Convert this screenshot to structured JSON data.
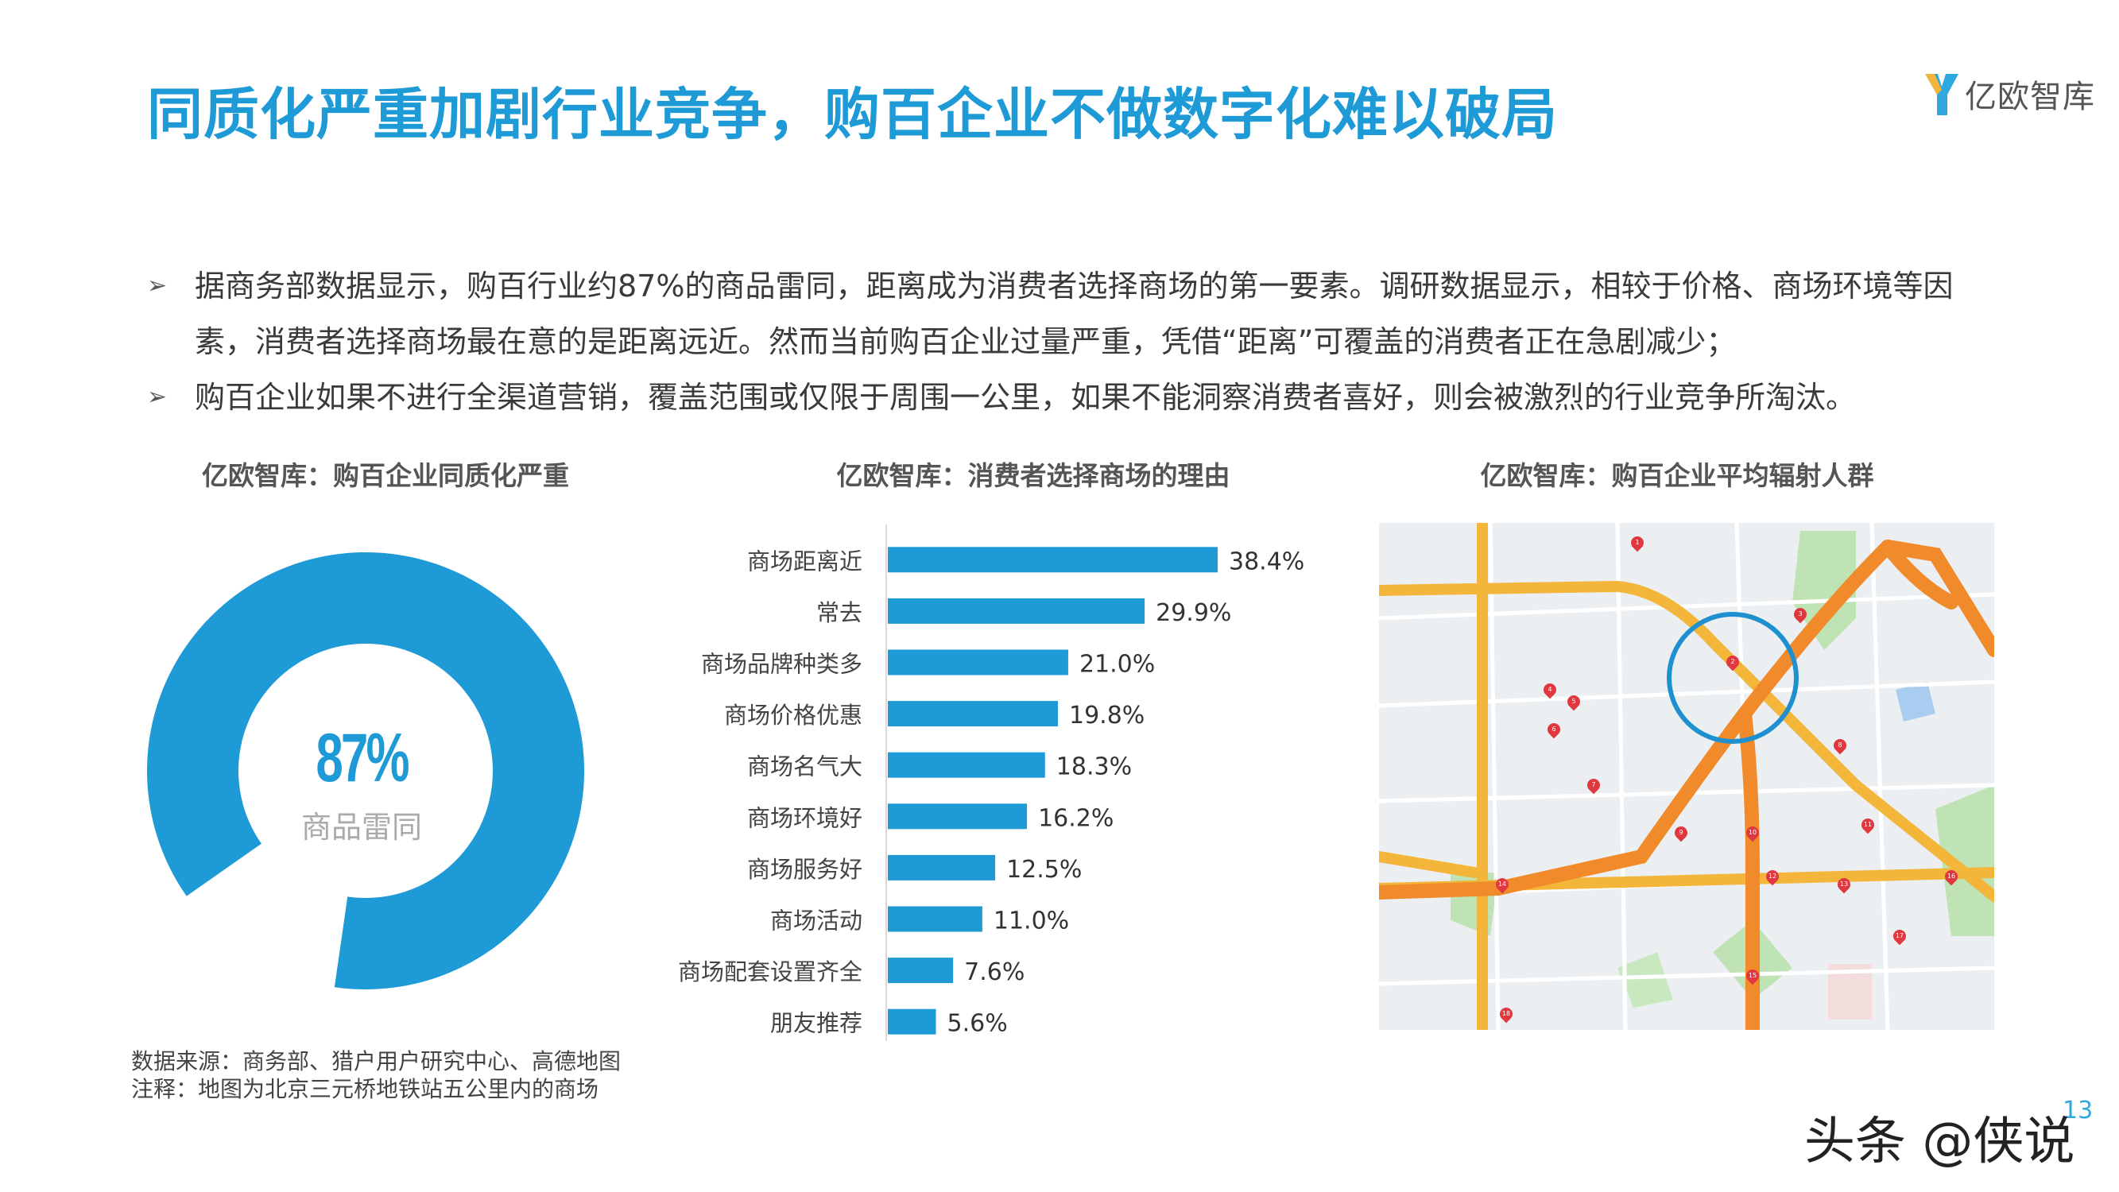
{
  "title": "同质化严重加剧行业竞争，购百企业不做数字化难以破局",
  "logo": {
    "text": "亿欧智库"
  },
  "bullets": [
    "据商务部数据显示，购百行业约87%的商品雷同，距离成为消费者选择商场的第一要素。调研数据显示，相较于价格、商场环境等因素，消费者选择商场最在意的是距离远近。然而当前购百企业过量严重，凭借“距离”可覆盖的消费者正在急剧减少；",
    "购百企业如果不进行全渠道营销，覆盖范围或仅限于周围一公里，如果不能洞察消费者喜好，则会被激烈的行业竞争所淘汰。"
  ],
  "panels": {
    "left_title": "亿欧智库：购百企业同质化严重",
    "middle_title": "亿欧智库：消费者选择商场的理由",
    "right_title": "亿欧智库：购百企业平均辐射人群"
  },
  "chart_data": [
    {
      "type": "pie",
      "title": "亿欧智库：购百企业同质化严重",
      "center_value": "87%",
      "center_label": "商品雷同",
      "slices": [
        {
          "label": "商品雷同",
          "value": 87,
          "color": "#1e9ad6"
        },
        {
          "label": "",
          "value": 13,
          "color": "#ffffff"
        }
      ]
    },
    {
      "type": "bar",
      "orientation": "horizontal",
      "title": "亿欧智库：消费者选择商场的理由",
      "categories": [
        "商场距离近",
        "常去",
        "商场品牌种类多",
        "商场价格优惠",
        "商场名气大",
        "商场环境好",
        "商场服务好",
        "商场活动",
        "商场配套设置齐全",
        "朋友推荐"
      ],
      "values": [
        38.4,
        29.9,
        21.0,
        19.8,
        18.3,
        16.2,
        12.5,
        11.0,
        7.6,
        5.6
      ],
      "labels": [
        "38.4%",
        "29.9%",
        "21.0%",
        "19.8%",
        "18.3%",
        "16.2%",
        "12.5%",
        "11.0%",
        "7.6%",
        "5.6%"
      ],
      "xlim": [
        0,
        38.4
      ],
      "color": "#1e9ad6"
    }
  ],
  "map": {
    "marker_labels": [
      "1",
      "2",
      "3",
      "4",
      "5",
      "6",
      "7",
      "8",
      "9",
      "10",
      "11",
      "12",
      "13",
      "14",
      "15",
      "16",
      "17",
      "18"
    ]
  },
  "source_lines": [
    "数据来源：商务部、猎户用户研究中心、高德地图",
    "注释：地图为北京三元桥地铁站五公里内的商场"
  ],
  "page_number": "13",
  "watermark": "头条 @侠说",
  "colors": {
    "accent": "#1e9ad6",
    "road": "#f3b53a",
    "road_major": "#f08a2a"
  }
}
